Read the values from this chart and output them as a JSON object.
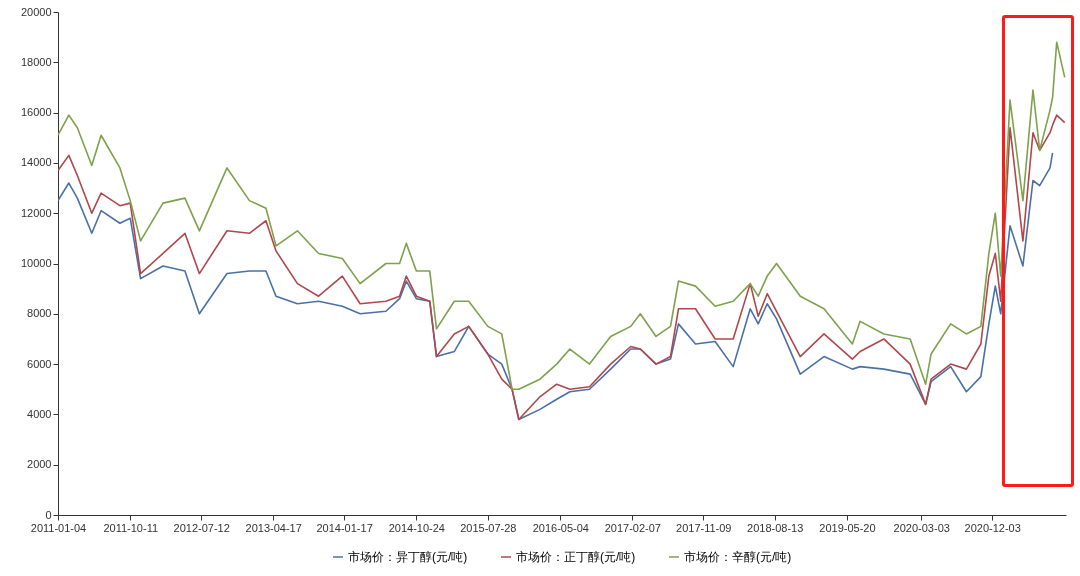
{
  "chart_data": {
    "type": "line",
    "x": [
      "2011-01-04",
      "2011-02-15",
      "2011-03-20",
      "2011-05-15",
      "2011-06-20",
      "2011-09-01",
      "2011-10-11",
      "2011-11-20",
      "2012-02-15",
      "2012-05-10",
      "2012-07-05",
      "2012-10-20",
      "2013-01-15",
      "2013-03-20",
      "2013-04-28",
      "2013-07-20",
      "2013-10-10",
      "2014-01-10",
      "2014-03-20",
      "2014-06-28",
      "2014-08-20",
      "2014-09-15",
      "2014-10-24",
      "2014-12-15",
      "2015-01-10",
      "2015-03-20",
      "2015-05-15",
      "2015-07-28",
      "2015-09-20",
      "2015-10-30",
      "2015-11-25",
      "2016-02-15",
      "2016-04-20",
      "2016-06-10",
      "2016-08-25",
      "2016-11-15",
      "2017-02-01",
      "2017-03-10",
      "2017-05-10",
      "2017-07-05",
      "2017-08-05",
      "2017-10-10",
      "2017-12-25",
      "2018-03-05",
      "2018-05-10",
      "2018-06-10",
      "2018-07-15",
      "2018-08-20",
      "2018-11-20",
      "2019-02-20",
      "2019-06-10",
      "2019-07-10",
      "2019-10-10",
      "2020-01-20",
      "2020-03-20",
      "2020-04-10",
      "2020-06-25",
      "2020-08-25",
      "2020-10-20",
      "2020-11-20",
      "2020-12-15",
      "2021-01-05",
      "2021-02-10",
      "2021-04-01",
      "2021-05-10",
      "2021-06-05",
      "2021-07-15",
      "2021-07-25",
      "2021-08-10",
      "2021-09-10"
    ],
    "series": [
      {
        "name": "市场价：异丁醇(元/吨)",
        "color": "#4a70a8",
        "values": [
          12500,
          13200,
          12600,
          11200,
          12100,
          11600,
          11800,
          9400,
          9900,
          9700,
          8000,
          9600,
          9700,
          9700,
          8700,
          8400,
          8500,
          8300,
          8000,
          8100,
          8600,
          9300,
          8600,
          8500,
          6300,
          6500,
          7500,
          6400,
          6000,
          5000,
          3800,
          4200,
          4600,
          4900,
          5000,
          5800,
          6600,
          6600,
          6000,
          6200,
          7600,
          6800,
          6900,
          5900,
          8200,
          7600,
          8400,
          7800,
          5600,
          6300,
          5800,
          5900,
          5800,
          5600,
          4400,
          5300,
          5900,
          4900,
          5500,
          7600,
          9100,
          8000,
          11500,
          9900,
          13300,
          13100,
          13800,
          14400,
          null,
          null
        ]
      },
      {
        "name": "市场价：正丁醇(元/吨)",
        "color": "#b0474c",
        "values": [
          13700,
          14300,
          13500,
          12000,
          12800,
          12300,
          12400,
          9600,
          10400,
          11200,
          9600,
          11300,
          11200,
          11700,
          10500,
          9200,
          8700,
          9500,
          8400,
          8500,
          8700,
          9500,
          8700,
          8500,
          6300,
          7200,
          7500,
          6400,
          5400,
          5000,
          3800,
          4700,
          5200,
          5000,
          5100,
          6000,
          6700,
          6600,
          6000,
          6300,
          8200,
          8200,
          7000,
          7000,
          9200,
          7900,
          8800,
          8100,
          6300,
          7200,
          6200,
          6500,
          7000,
          6000,
          4400,
          5400,
          6000,
          5800,
          6800,
          9500,
          10400,
          8500,
          15400,
          10900,
          15200,
          14500,
          15200,
          15500,
          15900,
          15600
        ]
      },
      {
        "name": "市场价：辛醇(元/吨)",
        "color": "#7ea14a",
        "values": [
          15100,
          15900,
          15400,
          13900,
          15100,
          13800,
          12500,
          10900,
          12400,
          12600,
          11300,
          13800,
          12500,
          12200,
          10700,
          11300,
          10400,
          10200,
          9200,
          10000,
          10000,
          10800,
          9700,
          9700,
          7400,
          8500,
          8500,
          7500,
          7200,
          5000,
          5000,
          5400,
          6000,
          6600,
          6000,
          7100,
          7500,
          8000,
          7100,
          7500,
          9300,
          9100,
          8300,
          8500,
          9200,
          8700,
          9500,
          10000,
          8700,
          8200,
          6800,
          7700,
          7200,
          7000,
          5200,
          6400,
          7600,
          7200,
          7500,
          10400,
          12000,
          9500,
          16500,
          12500,
          16900,
          14500,
          16100,
          16600,
          18800,
          17400
        ]
      }
    ],
    "xlim": [
      "2011-01-04",
      "2021-09-15"
    ],
    "xticks": [
      "2011-01-04",
      "2011-10-11",
      "2012-07-12",
      "2013-04-17",
      "2014-01-17",
      "2014-10-24",
      "2015-07-28",
      "2016-05-04",
      "2017-02-07",
      "2017-11-09",
      "2018-08-13",
      "2019-05-20",
      "2020-03-03",
      "2020-12-03"
    ],
    "ylim": [
      0,
      20000
    ],
    "yticks": [
      0,
      2000,
      4000,
      6000,
      8000,
      10000,
      12000,
      14000,
      16000,
      18000,
      20000
    ],
    "legend": "bottom"
  }
}
